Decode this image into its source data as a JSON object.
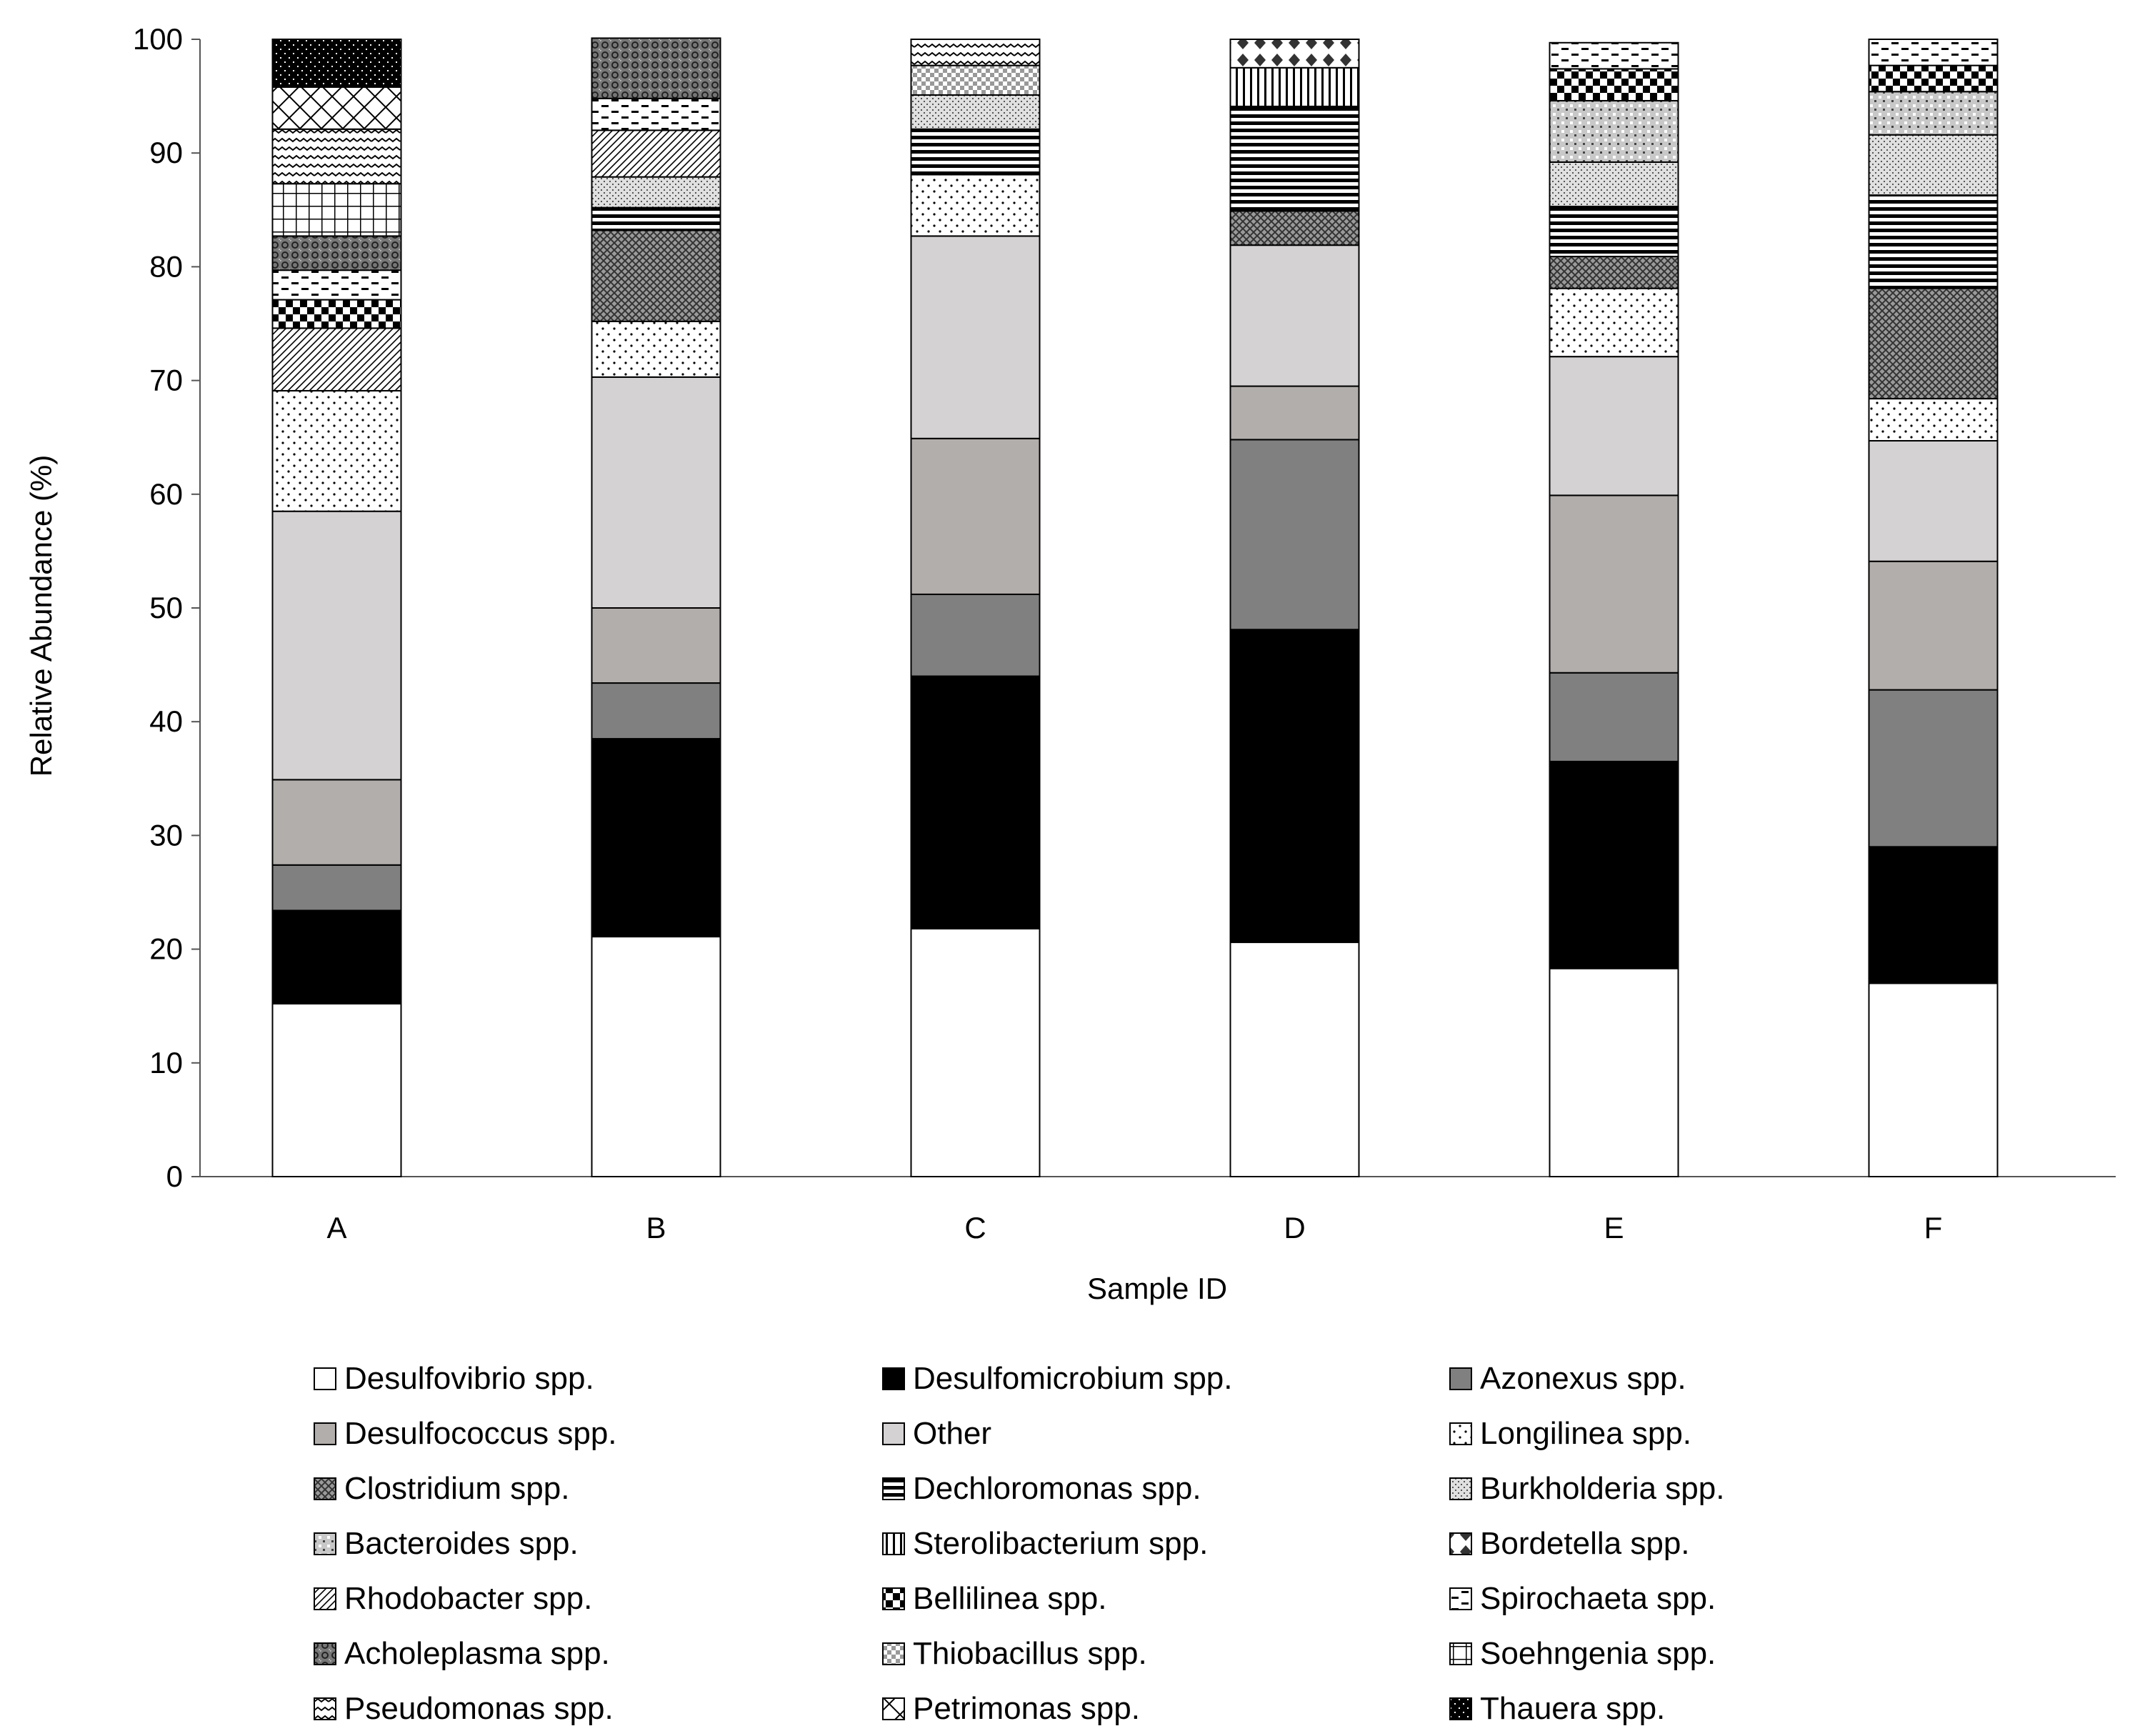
{
  "chart_data": {
    "type": "bar",
    "stacked": true,
    "title": "",
    "xlabel": "Sample ID",
    "ylabel": "Relative Abundance (%)",
    "ylim": [
      0,
      100
    ],
    "yticks": [
      0,
      10,
      20,
      30,
      40,
      50,
      60,
      70,
      80,
      90,
      100
    ],
    "grid": false,
    "legend_position": "bottom",
    "categories": [
      "A",
      "B",
      "C",
      "D",
      "E",
      "F"
    ],
    "series": [
      {
        "name": "Desulfovibrio spp.",
        "pattern": "white",
        "values": [
          15.2,
          21.1,
          21.8,
          20.6,
          18.3,
          17.0
        ]
      },
      {
        "name": "Desulfomicrobium spp.",
        "pattern": "black",
        "values": [
          8.2,
          17.4,
          22.2,
          27.5,
          18.2,
          12.0
        ]
      },
      {
        "name": "Azonexus spp.",
        "pattern": "darkgray",
        "values": [
          4.0,
          4.9,
          7.2,
          16.7,
          7.8,
          13.8
        ]
      },
      {
        "name": "Desulfococcus spp.",
        "pattern": "midgray",
        "values": [
          7.5,
          6.6,
          13.7,
          4.7,
          15.6,
          11.3
        ]
      },
      {
        "name": "Other",
        "pattern": "lightgray",
        "values": [
          23.6,
          20.3,
          17.8,
          12.4,
          12.2,
          10.6
        ]
      },
      {
        "name": "Longilinea spp.",
        "pattern": "dots",
        "values": [
          10.6,
          4.9,
          5.4,
          0.0,
          6.0,
          3.7
        ]
      },
      {
        "name": "Clostridium spp.",
        "pattern": "crosshatch",
        "values": [
          0.0,
          8.0,
          0.0,
          3.0,
          2.8,
          9.7
        ]
      },
      {
        "name": "Dechloromonas spp.",
        "pattern": "hlines",
        "values": [
          0.0,
          2.0,
          4.0,
          9.2,
          4.4,
          8.2
        ]
      },
      {
        "name": "Burkholderia spp.",
        "pattern": "finedots",
        "values": [
          0.0,
          2.7,
          3.0,
          0.0,
          3.9,
          5.3
        ]
      },
      {
        "name": "Bacteroides spp.",
        "pattern": "smallsquares",
        "values": [
          0.0,
          0.0,
          0.0,
          0.0,
          5.4,
          3.8
        ]
      },
      {
        "name": "Sterolibacterium spp.",
        "pattern": "vlines",
        "values": [
          0.0,
          0.0,
          0.0,
          3.4,
          0.0,
          0.0
        ]
      },
      {
        "name": "Bordetella spp.",
        "pattern": "diamonds",
        "values": [
          0.0,
          0.0,
          0.0,
          2.5,
          0.0,
          0.0
        ]
      },
      {
        "name": "Rhodobacter spp.",
        "pattern": "diagonal",
        "values": [
          5.5,
          4.1,
          0.0,
          0.0,
          0.0,
          0.0
        ]
      },
      {
        "name": "Bellilinea spp.",
        "pattern": "checker",
        "values": [
          2.5,
          0.0,
          0.0,
          0.0,
          2.8,
          2.3
        ]
      },
      {
        "name": "Spirochaeta spp.",
        "pattern": "dashes",
        "values": [
          2.6,
          2.8,
          0.0,
          0.0,
          2.3,
          2.3
        ]
      },
      {
        "name": "Acholeplasma spp.",
        "pattern": "denseweave",
        "values": [
          3.0,
          5.3,
          0.0,
          0.0,
          0.0,
          0.0
        ]
      },
      {
        "name": "Thiobacillus spp.",
        "pattern": "checkgray",
        "values": [
          0.0,
          0.0,
          2.6,
          0.0,
          0.0,
          0.0
        ]
      },
      {
        "name": "Soehngenia spp.",
        "pattern": "grid",
        "values": [
          4.6,
          0.0,
          0.0,
          0.0,
          0.0,
          0.0
        ]
      },
      {
        "name": "Pseudomonas spp.",
        "pattern": "wave",
        "values": [
          4.8,
          0.0,
          2.3,
          0.0,
          0.0,
          0.0
        ]
      },
      {
        "name": "Petrimonas spp.",
        "pattern": "widediagonal",
        "values": [
          3.7,
          0.0,
          0.0,
          0.0,
          0.0,
          0.0
        ]
      },
      {
        "name": "Thauera spp.",
        "pattern": "blackdots",
        "values": [
          4.2,
          0.0,
          0.0,
          0.0,
          0.0,
          0.0
        ]
      }
    ]
  }
}
